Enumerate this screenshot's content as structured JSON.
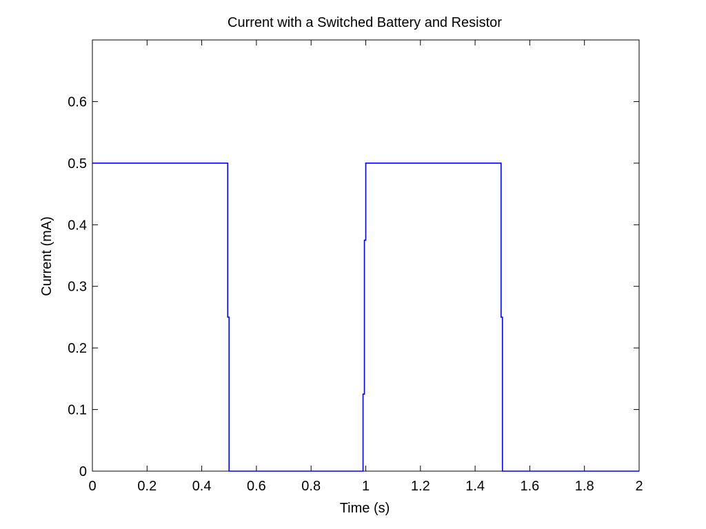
{
  "chart_data": {
    "type": "line",
    "title": "Current with a Switched Battery and Resistor",
    "xlabel": "Time (s)",
    "ylabel": "Current (mA)",
    "xlim": [
      0,
      2
    ],
    "ylim": [
      0,
      0.7
    ],
    "xticks": [
      "0",
      "0.2",
      "0.4",
      "0.6",
      "0.8",
      "1",
      "1.2",
      "1.4",
      "1.6",
      "1.8",
      "2"
    ],
    "yticks": [
      "0",
      "0.1",
      "0.2",
      "0.3",
      "0.4",
      "0.5",
      "0.6"
    ],
    "grid": false,
    "series": [
      {
        "color": "#0000ff",
        "x": [
          0,
          0.49,
          0.49,
          0.495,
          0.495,
          0.5,
          0.5,
          0.99,
          0.99,
          0.995,
          0.995,
          1.0,
          1.0,
          1.49,
          1.49,
          1.495,
          1.495,
          1.5,
          1.5,
          2.0
        ],
        "y": [
          0.5,
          0.5,
          0.5,
          0.5,
          0.25,
          0.25,
          0,
          0,
          0.125,
          0.125,
          0.375,
          0.375,
          0.5,
          0.5,
          0.5,
          0.5,
          0.25,
          0.25,
          0,
          0
        ]
      }
    ]
  }
}
